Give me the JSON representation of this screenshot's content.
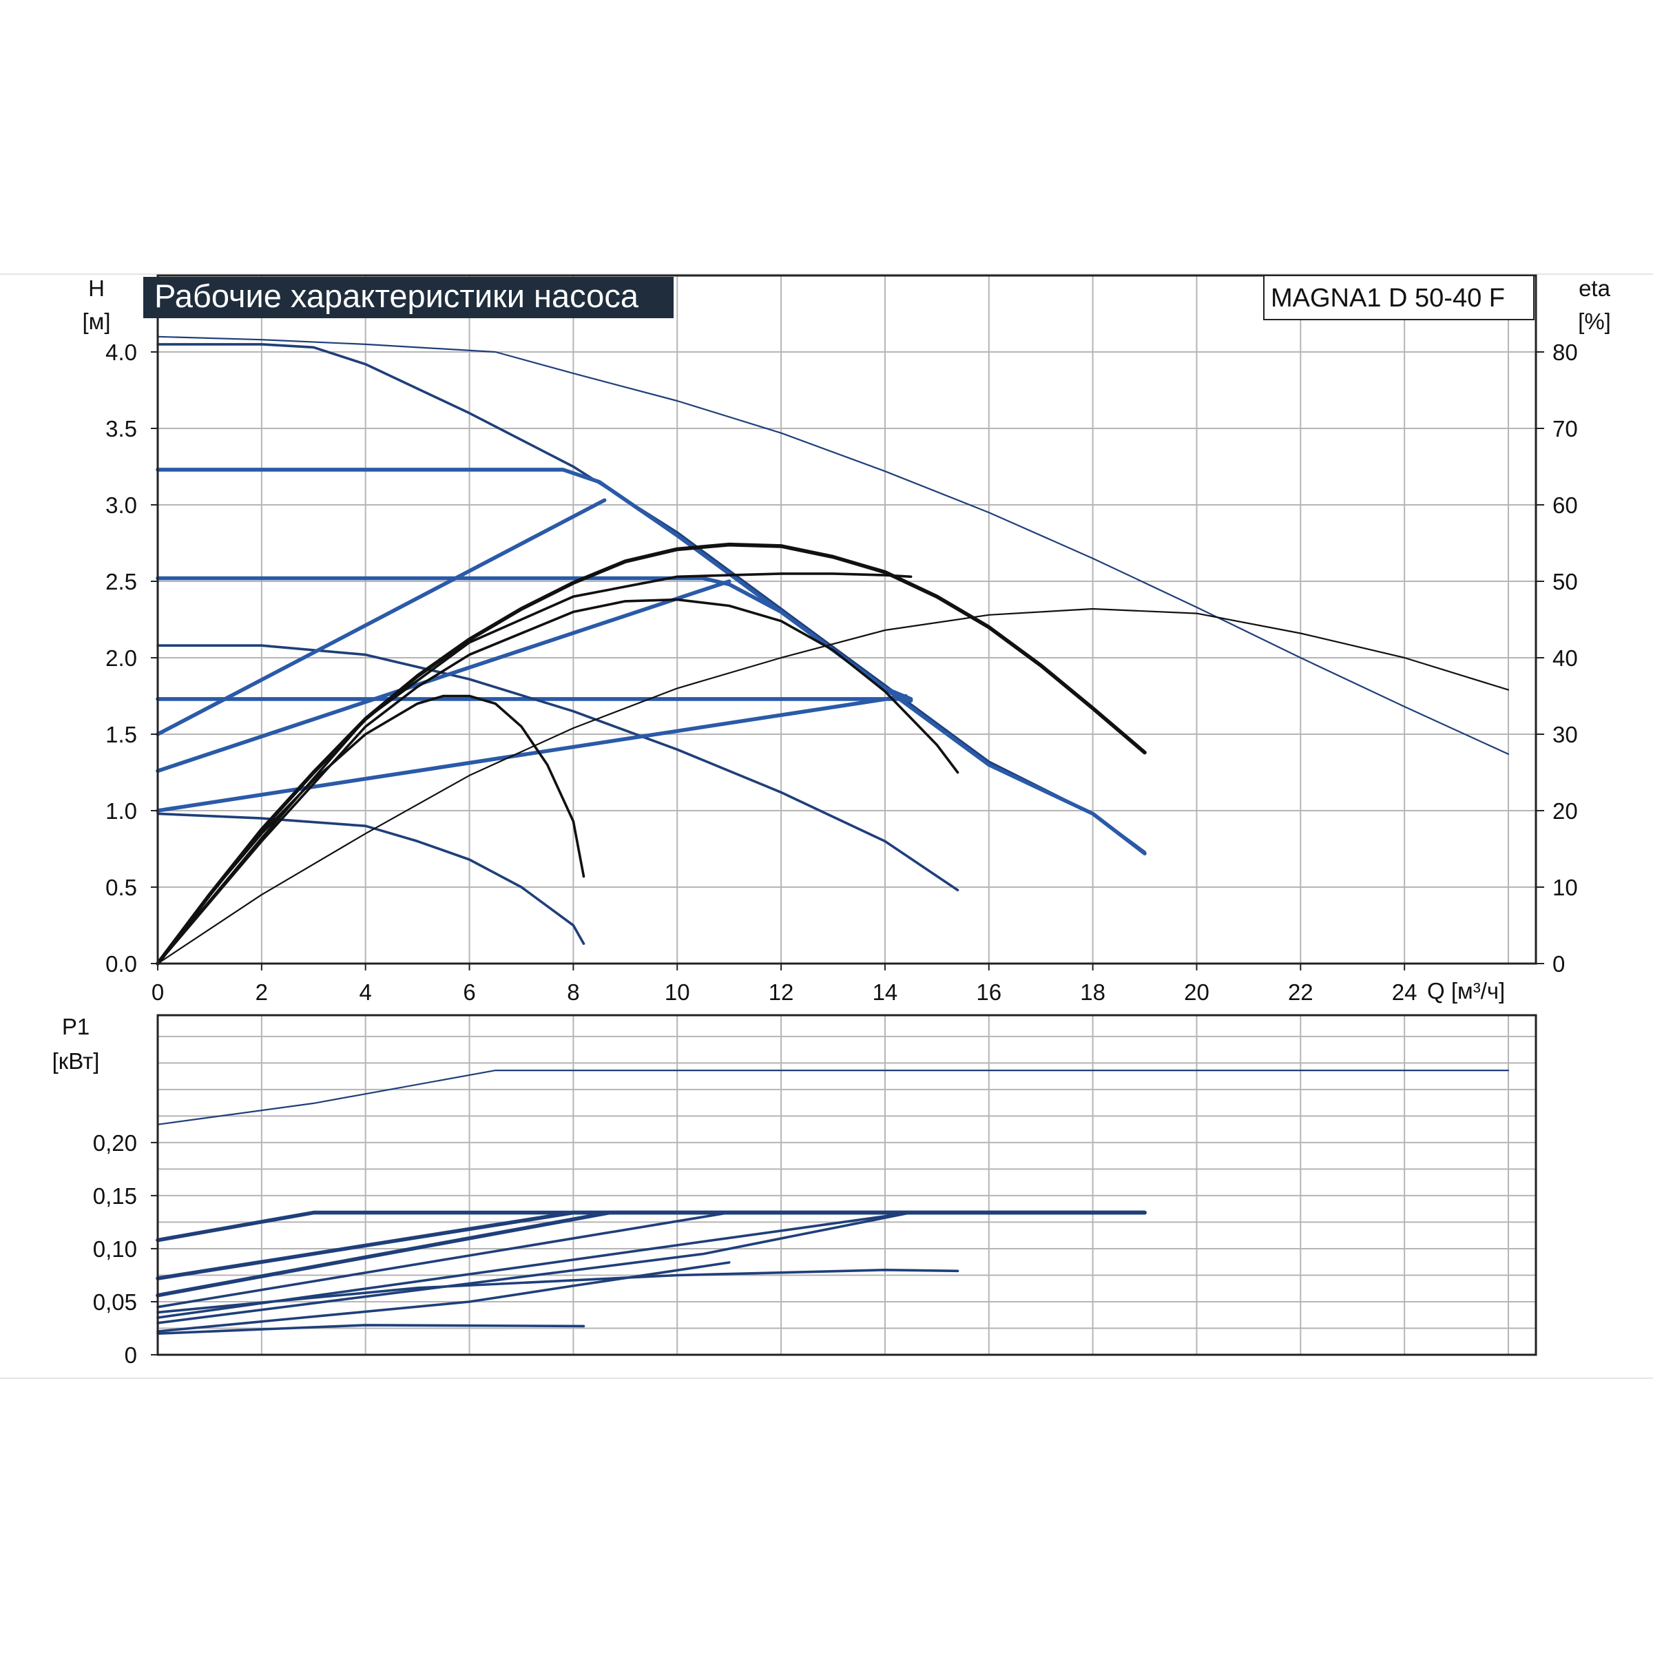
{
  "chart_data": [
    {
      "type": "line",
      "title": "Рабочие характеристики насоса",
      "model_label": "MAGNA1 D 50-40 F",
      "ylabel_symbol": "H",
      "ylabel_unit": "[м]",
      "y2label_symbol": "eta",
      "y2label_unit": "[%]",
      "xlabel": "Q [м³/ч]",
      "xlim": [
        0,
        26
      ],
      "ylim": [
        0,
        4.5
      ],
      "y2lim": [
        0,
        90
      ],
      "x_ticks": [
        "0",
        "2",
        "4",
        "6",
        "8",
        "10",
        "12",
        "14",
        "16",
        "18",
        "20",
        "22",
        "24"
      ],
      "y_ticks": [
        "0.0",
        "0.5",
        "1.0",
        "1.5",
        "2.0",
        "2.5",
        "3.0",
        "3.5",
        "4.0"
      ],
      "y2_ticks": [
        "0",
        "10",
        "20",
        "30",
        "40",
        "50",
        "60",
        "70",
        "80"
      ],
      "colors": {
        "head": "#1f3f7a",
        "control_line": "#2a5aa8",
        "efficiency": "#111111",
        "grid": "#b5b5b5"
      },
      "series": [
        {
          "kind": "head",
          "role": "max",
          "weight": "thin",
          "points": [
            [
              0,
              4.1
            ],
            [
              2,
              4.08
            ],
            [
              4,
              4.05
            ],
            [
              6.5,
              4.0
            ],
            [
              8,
              3.86
            ],
            [
              10,
              3.68
            ],
            [
              12,
              3.47
            ],
            [
              14,
              3.22
            ],
            [
              16,
              2.95
            ],
            [
              18,
              2.65
            ],
            [
              20,
              2.33
            ],
            [
              22,
              2.0
            ],
            [
              24,
              1.68
            ],
            [
              26,
              1.37
            ]
          ]
        },
        {
          "kind": "head",
          "role": "const-curve",
          "weight": "medium",
          "points": [
            [
              0,
              4.05
            ],
            [
              2,
              4.05
            ],
            [
              3,
              4.03
            ],
            [
              4,
              3.92
            ],
            [
              6,
              3.6
            ],
            [
              8,
              3.25
            ],
            [
              10,
              2.82
            ],
            [
              12,
              2.32
            ],
            [
              14,
              1.82
            ],
            [
              16,
              1.32
            ],
            [
              18,
              0.98
            ],
            [
              19,
              0.73
            ]
          ]
        },
        {
          "kind": "head",
          "role": "const-pressure",
          "weight": "thick",
          "points": [
            [
              0,
              3.23
            ],
            [
              7.8,
              3.23
            ],
            [
              8.5,
              3.15
            ],
            [
              10,
              2.8
            ],
            [
              12,
              2.3
            ],
            [
              14,
              1.8
            ],
            [
              16,
              1.3
            ],
            [
              18,
              0.98
            ],
            [
              19,
              0.72
            ]
          ]
        },
        {
          "kind": "head",
          "role": "const-pressure",
          "weight": "thick",
          "points": [
            [
              0,
              2.52
            ],
            [
              10.5,
              2.52
            ],
            [
              11,
              2.48
            ],
            [
              12,
              2.3
            ],
            [
              14,
              1.8
            ],
            [
              14.5,
              1.73
            ]
          ]
        },
        {
          "kind": "head",
          "role": "const-pressure",
          "weight": "thick",
          "points": [
            [
              0,
              1.73
            ],
            [
              14.3,
              1.73
            ],
            [
              14.5,
              1.72
            ]
          ]
        },
        {
          "kind": "head",
          "role": "const-curve",
          "weight": "medium",
          "points": [
            [
              0,
              2.08
            ],
            [
              2,
              2.08
            ],
            [
              4,
              2.02
            ],
            [
              6,
              1.86
            ],
            [
              8,
              1.65
            ],
            [
              10,
              1.4
            ],
            [
              12,
              1.12
            ],
            [
              14,
              0.8
            ],
            [
              15.4,
              0.48
            ]
          ]
        },
        {
          "kind": "head",
          "role": "min",
          "weight": "medium",
          "points": [
            [
              0,
              0.98
            ],
            [
              2,
              0.95
            ],
            [
              4,
              0.9
            ],
            [
              5,
              0.8
            ],
            [
              6,
              0.68
            ],
            [
              7,
              0.5
            ],
            [
              8,
              0.25
            ],
            [
              8.2,
              0.13
            ]
          ]
        },
        {
          "kind": "head",
          "role": "prop-pressure",
          "weight": "thick",
          "points": [
            [
              0,
              1.5
            ],
            [
              8.6,
              3.03
            ]
          ]
        },
        {
          "kind": "head",
          "role": "prop-pressure",
          "weight": "thick",
          "points": [
            [
              0,
              1.26
            ],
            [
              11,
              2.5
            ]
          ]
        },
        {
          "kind": "head",
          "role": "prop-pressure",
          "weight": "thick",
          "points": [
            [
              0,
              1.0
            ],
            [
              14.4,
              1.75
            ]
          ]
        },
        {
          "kind": "efficiency",
          "weight": "thick",
          "points": [
            [
              0,
              0
            ],
            [
              1,
              9
            ],
            [
              2,
              17.5
            ],
            [
              3,
              25
            ],
            [
              4,
              32
            ],
            [
              5,
              37.6
            ],
            [
              6,
              42.4
            ],
            [
              7,
              46.4
            ],
            [
              8,
              49.8
            ],
            [
              9,
              52.6
            ],
            [
              10,
              54.2
            ],
            [
              11,
              54.8
            ],
            [
              12,
              54.6
            ],
            [
              13,
              53.2
            ],
            [
              14,
              51.2
            ],
            [
              15,
              48
            ],
            [
              16,
              44
            ],
            [
              17,
              39
            ],
            [
              18,
              33.4
            ],
            [
              19,
              27.6
            ]
          ]
        },
        {
          "kind": "efficiency",
          "weight": "medium",
          "points": [
            [
              0,
              0
            ],
            [
              2,
              16.4
            ],
            [
              4,
              32
            ],
            [
              6,
              42
            ],
            [
              8,
              48
            ],
            [
              10,
              50.6
            ],
            [
              12,
              51
            ],
            [
              13,
              51
            ],
            [
              14,
              50.8
            ],
            [
              14.5,
              50.6
            ]
          ]
        },
        {
          "kind": "efficiency",
          "weight": "medium",
          "points": [
            [
              0,
              0
            ],
            [
              2,
              16
            ],
            [
              4,
              31
            ],
            [
              5,
              36.2
            ],
            [
              6,
              40.4
            ],
            [
              8,
              46
            ],
            [
              9,
              47.4
            ],
            [
              10,
              47.6
            ],
            [
              11,
              46.8
            ],
            [
              12,
              44.8
            ],
            [
              13,
              41
            ],
            [
              14,
              35.6
            ],
            [
              15,
              28.6
            ],
            [
              15.4,
              25
            ]
          ]
        },
        {
          "kind": "efficiency",
          "weight": "medium",
          "points": [
            [
              0,
              0
            ],
            [
              1,
              9
            ],
            [
              2,
              17
            ],
            [
              3,
              24
            ],
            [
              4,
              30
            ],
            [
              5,
              34
            ],
            [
              5.5,
              35
            ],
            [
              6,
              35
            ],
            [
              6.5,
              34
            ],
            [
              7,
              31
            ],
            [
              7.5,
              26
            ],
            [
              8,
              18.6
            ],
            [
              8.2,
              11.4
            ]
          ]
        },
        {
          "kind": "efficiency",
          "weight": "thin",
          "points": [
            [
              0,
              0
            ],
            [
              2,
              9
            ],
            [
              4,
              17
            ],
            [
              6,
              24.6
            ],
            [
              8,
              30.8
            ],
            [
              10,
              36
            ],
            [
              12,
              40
            ],
            [
              14,
              43.6
            ],
            [
              16,
              45.6
            ],
            [
              18,
              46.4
            ],
            [
              20,
              45.8
            ],
            [
              22,
              43.2
            ],
            [
              24,
              40
            ],
            [
              26,
              35.8
            ]
          ]
        }
      ]
    },
    {
      "type": "line",
      "ylabel_symbol": "P1",
      "ylabel_unit": "[кВт]",
      "xlim": [
        0,
        26
      ],
      "ylim": [
        0,
        0.32
      ],
      "y_ticks": [
        "0",
        "0,05",
        "0,10",
        "0,15",
        "0,20"
      ],
      "series": [
        {
          "kind": "power",
          "role": "max",
          "weight": "thin",
          "points": [
            [
              0,
              0.217
            ],
            [
              3,
              0.237
            ],
            [
              6.5,
              0.268
            ],
            [
              7,
              0.268
            ],
            [
              26,
              0.268
            ]
          ]
        },
        {
          "kind": "power",
          "weight": "thick",
          "points": [
            [
              0,
              0.108
            ],
            [
              3,
              0.134
            ],
            [
              19,
              0.134
            ]
          ]
        },
        {
          "kind": "power",
          "weight": "thick",
          "points": [
            [
              0,
              0.072
            ],
            [
              8,
              0.134
            ],
            [
              19,
              0.134
            ]
          ]
        },
        {
          "kind": "power",
          "weight": "thick",
          "points": [
            [
              0,
              0.056
            ],
            [
              8.7,
              0.134
            ],
            [
              19,
              0.134
            ]
          ]
        },
        {
          "kind": "power",
          "weight": "medium",
          "points": [
            [
              0,
              0.045
            ],
            [
              11,
              0.134
            ],
            [
              19,
              0.134
            ]
          ]
        },
        {
          "kind": "power",
          "weight": "medium",
          "points": [
            [
              0,
              0.035
            ],
            [
              14.5,
              0.134
            ],
            [
              19,
              0.134
            ]
          ]
        },
        {
          "kind": "power",
          "weight": "medium",
          "points": [
            [
              0,
              0.04
            ],
            [
              5,
              0.063
            ],
            [
              10,
              0.075
            ],
            [
              14,
              0.08
            ],
            [
              15.4,
              0.079
            ]
          ]
        },
        {
          "kind": "power",
          "weight": "medium",
          "points": [
            [
              0,
              0.03
            ],
            [
              10.5,
              0.095
            ],
            [
              14.5,
              0.134
            ]
          ]
        },
        {
          "kind": "power",
          "weight": "medium",
          "points": [
            [
              0,
              0.02
            ],
            [
              4,
              0.028
            ],
            [
              8.2,
              0.027
            ]
          ]
        },
        {
          "kind": "power",
          "weight": "medium",
          "points": [
            [
              0,
              0.022
            ],
            [
              6,
              0.05
            ],
            [
              8,
              0.065
            ],
            [
              11,
              0.087
            ]
          ]
        }
      ]
    }
  ]
}
